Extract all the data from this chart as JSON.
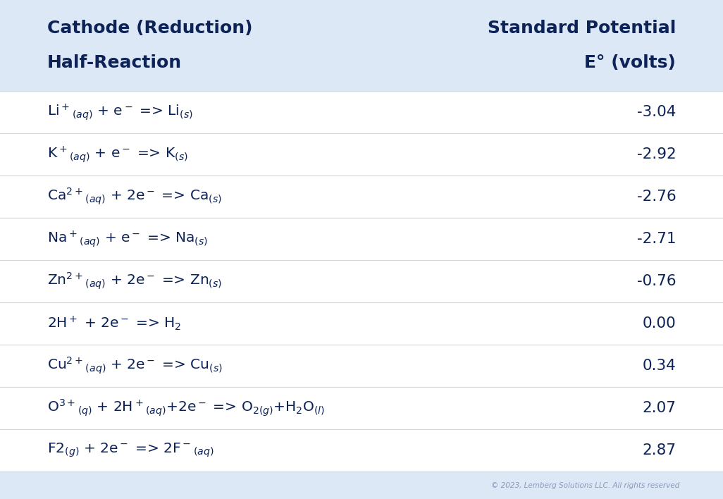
{
  "background_color": "#dce8f5",
  "row_bg": "#ffffff",
  "header_bg": "#dce8f5",
  "text_color_dark": "#0d2257",
  "copyright_color": "#8899bb",
  "header_line1": "Cathode (Reduction)",
  "header_line2": "Half-Reaction",
  "header_right_line1": "Standard Potential",
  "header_right_line2": "E° (volts)",
  "rows": [
    {
      "reaction": "Li$^+$$_{(aq)}$ + e$^-$ => Li$_{(s)}$",
      "potential": "-3.04"
    },
    {
      "reaction": "K$^+$$_{(aq)}$ + e$^-$ => K$_{(s)}$",
      "potential": "-2.92"
    },
    {
      "reaction": "Ca$^{2+}$$_{(aq)}$ + 2e$^-$ => Ca$_{(s)}$",
      "potential": "-2.76"
    },
    {
      "reaction": "Na$^+$$_{(aq)}$ + e$^-$ => Na$_{(s)}$",
      "potential": "-2.71"
    },
    {
      "reaction": "Zn$^{2+}$$_{(aq)}$ + 2e$^-$ => Zn$_{(s)}$",
      "potential": "-0.76"
    },
    {
      "reaction": "2H$^+$ + 2e$^-$ => H$_2$",
      "potential": "0.00"
    },
    {
      "reaction": "Cu$^{2+}$$_{(aq)}$ + 2e$^-$ => Cu$_{(s)}$",
      "potential": "0.34"
    },
    {
      "reaction": "O$^{3+}$$_{(q)}$ + 2H$^+$$_{(aq)}$+2e$^-$ => O$_{2(g)}$+H$_2$O$_{(l)}$",
      "potential": "2.07"
    },
    {
      "reaction": "F2$_{(g)}$ + 2e$^-$ => 2F$^-$$_{(aq)}$",
      "potential": "2.87"
    }
  ],
  "copyright": "© 2023, Lemberg Solutions LLC. All rights reserved",
  "figsize": [
    10.26,
    7.08
  ],
  "dpi": 100
}
